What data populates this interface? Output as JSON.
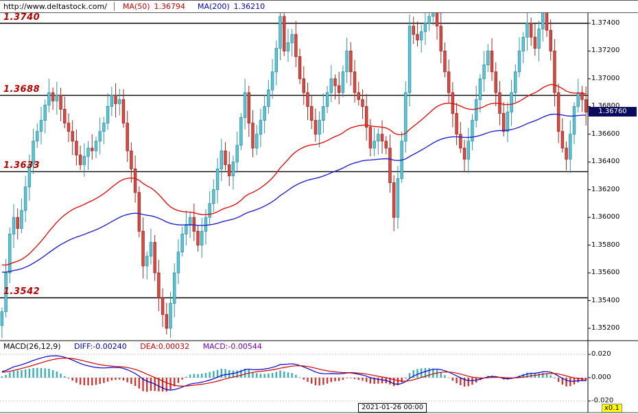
{
  "header": {
    "url": "http://www.deltastock.com/",
    "ma50_label": "MA(50)",
    "ma50_value": "1.36794",
    "ma200_label": "MA(200)",
    "ma200_value": "1.36210"
  },
  "levels": [
    {
      "label": "1.3740",
      "price": 1.374
    },
    {
      "label": "1.3688",
      "price": 1.3688
    },
    {
      "label": "1.3633",
      "price": 1.3633
    },
    {
      "label": "1.3542",
      "price": 1.3542
    }
  ],
  "price_axis": {
    "ticks": [
      "1.37400",
      "1.37200",
      "1.37000",
      "1.36800",
      "1.36600",
      "1.36400",
      "1.36200",
      "1.36000",
      "1.35800",
      "1.35600",
      "1.35400",
      "1.35200"
    ]
  },
  "current_price": {
    "label": "1.36760",
    "value": 1.3676
  },
  "macd": {
    "title": "MACD(26,12,9)",
    "diff": "DIFF:-0.00240",
    "dea": "DEA:0.00032",
    "macd": "MACD:-0.00544",
    "axis_ticks": [
      "0.020",
      "0.000",
      "-0.020"
    ],
    "multiplier": "x0.1"
  },
  "time_axis": {
    "label": "2021-01-26 00:00"
  },
  "chart_data": {
    "type": "candlestick",
    "title": "",
    "xlabel": "",
    "ylabel": "",
    "price_axis_range": [
      1.352,
      1.374
    ],
    "support_resistance_levels": [
      1.374,
      1.3688,
      1.3633,
      1.3542
    ],
    "last_price": 1.3676,
    "overlays": [
      {
        "name": "MA(50)",
        "value": 1.36794,
        "color": "#dd1111"
      },
      {
        "name": "MA(200)",
        "value": 1.3621,
        "color": "#2222cc"
      }
    ],
    "indicator": {
      "type": "MACD",
      "params": [
        26,
        12,
        9
      ],
      "diff": -0.0024,
      "dea": 0.00032,
      "macd": -0.00544,
      "axis_range": [
        -0.02,
        0.02
      ],
      "scale_multiplier": "x0.1"
    },
    "x_last_label": "2021-01-26 00:00",
    "closes": [
      1.3532,
      1.356,
      1.3588,
      1.36,
      1.3592,
      1.3605,
      1.3622,
      1.3638,
      1.3655,
      1.3662,
      1.367,
      1.3681,
      1.369,
      1.3684,
      1.3688,
      1.3678,
      1.3668,
      1.3662,
      1.3655,
      1.3645,
      1.3638,
      1.3644,
      1.365,
      1.3648,
      1.3655,
      1.3662,
      1.3668,
      1.368,
      1.3688,
      1.3682,
      1.3685,
      1.3668,
      1.3648,
      1.3635,
      1.3618,
      1.359,
      1.3565,
      1.3572,
      1.3582,
      1.356,
      1.3542,
      1.353,
      1.352,
      1.3538,
      1.356,
      1.3575,
      1.3588,
      1.3595,
      1.36,
      1.359,
      1.358,
      1.359,
      1.36,
      1.361,
      1.362,
      1.3635,
      1.3648,
      1.3638,
      1.363,
      1.364,
      1.3652,
      1.3672,
      1.369,
      1.3668,
      1.365,
      1.366,
      1.367,
      1.368,
      1.3692,
      1.3705,
      1.3722,
      1.3745,
      1.372,
      1.3726,
      1.3732,
      1.3716,
      1.37,
      1.369,
      1.368,
      1.367,
      1.366,
      1.367,
      1.368,
      1.369,
      1.37,
      1.3695,
      1.369,
      1.3705,
      1.372,
      1.3705,
      1.369,
      1.3685,
      1.368,
      1.3665,
      1.365,
      1.3655,
      1.366,
      1.3655,
      1.365,
      1.3625,
      1.36,
      1.3628,
      1.3655,
      1.369,
      1.3738,
      1.3732,
      1.3728,
      1.3734,
      1.374,
      1.3745,
      1.375,
      1.3738,
      1.372,
      1.3705,
      1.369,
      1.3675,
      1.366,
      1.365,
      1.3642,
      1.3655,
      1.367,
      1.3685,
      1.37,
      1.371,
      1.372,
      1.3705,
      1.369,
      1.3675,
      1.3662,
      1.3676,
      1.369,
      1.3705,
      1.372,
      1.373,
      1.374,
      1.373,
      1.3722,
      1.3736,
      1.3748,
      1.3735,
      1.372,
      1.369,
      1.3662,
      1.365,
      1.3642,
      1.366,
      1.368,
      1.369,
      1.3685,
      1.3676
    ],
    "colors": {
      "up_stroke": "#2e93a5",
      "up_fill": "#5ec4d4",
      "down_stroke": "#a8241f",
      "down_fill": "#cf4e46",
      "ma50": "#dd1111",
      "ma200": "#2222cc",
      "level_line": "#000000",
      "level_label": "#b30000",
      "diff_line": "#0000cc",
      "dea_line": "#cc0000",
      "hist_up": "#3aacb8",
      "hist_down": "#cc3333",
      "badge_bg": "#0a0a5e",
      "badge_text": "#ffffff",
      "multiplier_bg": "#ffff00"
    }
  }
}
